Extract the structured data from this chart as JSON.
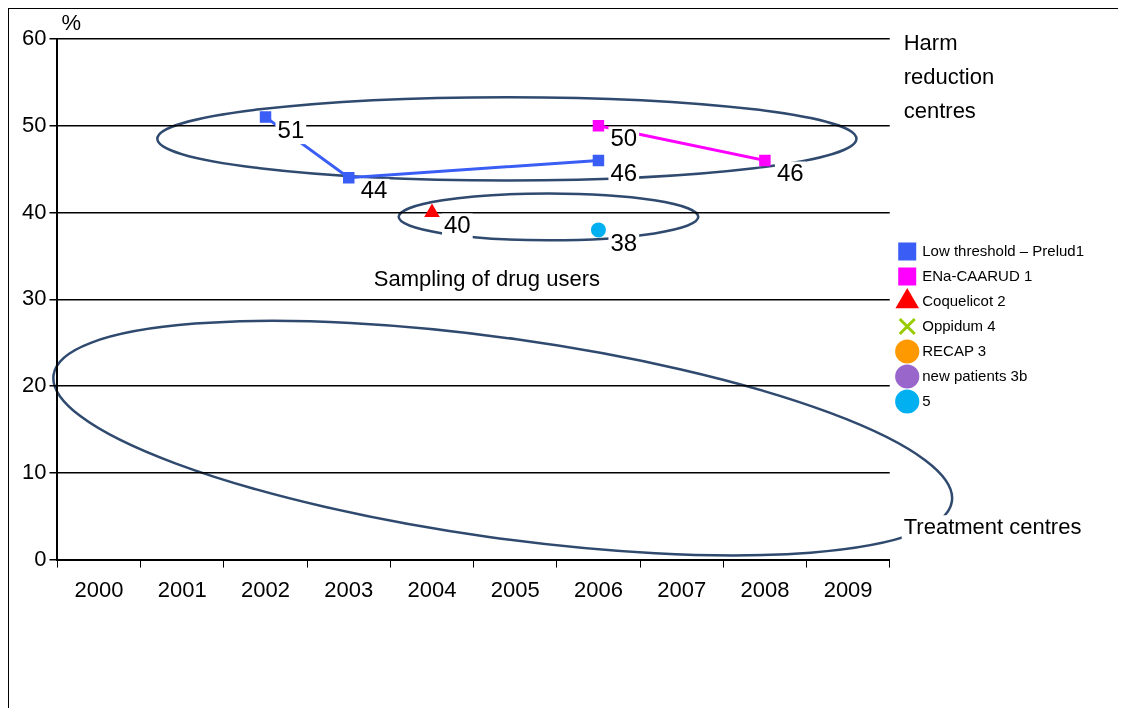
{
  "chart_data": {
    "type": "line",
    "ylabel": "%",
    "categories": [
      "2000",
      "2001",
      "2002",
      "2003",
      "2004",
      "2005",
      "2006",
      "2007",
      "2008",
      "2009"
    ],
    "series": [
      {
        "name": "Low threshold – Prelud1",
        "color": "#3a5ef5",
        "marker": "square",
        "values": [
          null,
          null,
          51,
          44,
          null,
          null,
          46,
          null,
          null,
          null
        ]
      },
      {
        "name": "ENa-CAARUD 1",
        "color": "#ff00ff",
        "marker": "square",
        "values": [
          null,
          null,
          null,
          null,
          null,
          null,
          50,
          null,
          46,
          null
        ]
      },
      {
        "name": "Coquelicot 2",
        "color": "#ff0000",
        "marker": "triangle",
        "values": [
          null,
          null,
          null,
          null,
          40,
          null,
          null,
          null,
          null,
          null
        ]
      },
      {
        "name": "Oppidum 4",
        "color": "#99cc00",
        "marker": "cross",
        "values": [
          null,
          null,
          null,
          null,
          null,
          null,
          null,
          null,
          null,
          null
        ]
      },
      {
        "name": "RECAP 3",
        "color": "#ff9900",
        "marker": "circle",
        "values": [
          null,
          null,
          null,
          null,
          null,
          null,
          null,
          null,
          null,
          null
        ]
      },
      {
        "name": "new patients 3b",
        "color": "#9966cc",
        "marker": "circle",
        "values": [
          null,
          null,
          null,
          null,
          null,
          null,
          null,
          null,
          null,
          null
        ]
      },
      {
        "name": "5",
        "color": "#00b0f0",
        "marker": "circle",
        "values": [
          null,
          null,
          null,
          null,
          null,
          null,
          38,
          null,
          null,
          null
        ]
      }
    ],
    "ylim": [
      0,
      60
    ],
    "yticks": [
      0,
      10,
      20,
      30,
      40,
      50,
      60
    ],
    "grid": "y",
    "legend": "right",
    "data_labels": true,
    "annotations": [
      "Harm reduction centres",
      "Sampling of drug users",
      "Treatment centres"
    ]
  }
}
